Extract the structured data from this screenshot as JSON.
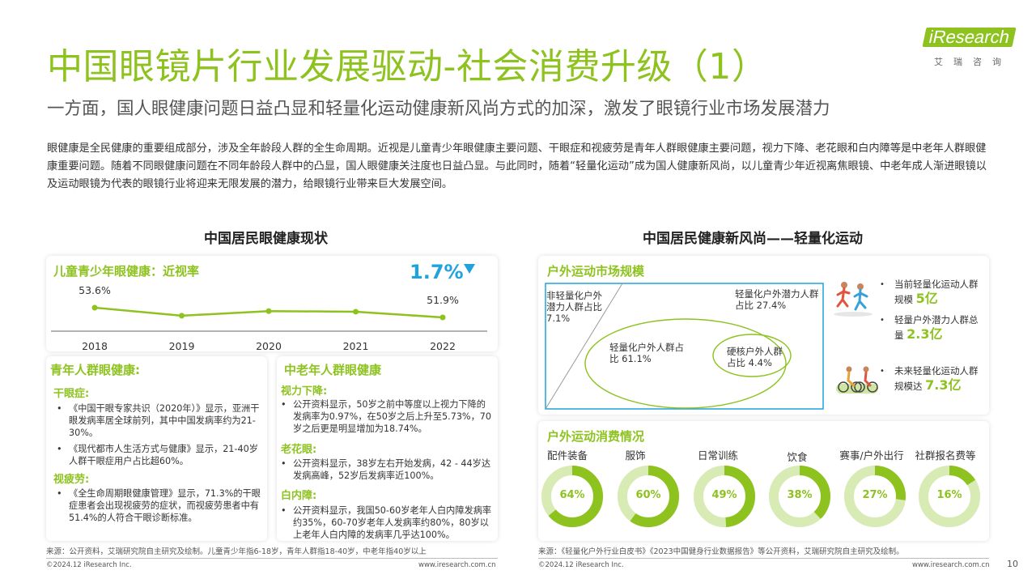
{
  "header": {
    "title": "中国眼镜片行业发展驱动-社会消费升级（1）",
    "subtitle": "一方面，国人眼健康问题日益凸显和轻量化运动健康新风尚方式的加深，激发了眼镜行业市场发展潜力",
    "intro": "眼健康是全民健康的重要组成部分，涉及全年龄段人群的全生命周期。近视是儿童青少年眼健康主要问题、干眼症和视疲劳是青年人群眼健康主要问题，视力下降、老花眼和白内障等是中老年人群眼健康重要问题。随着不同眼健康问题在不同年龄段人群中的凸显，国人眼健康关注度也日益凸显。与此同时，随着“轻量化运动”成为国人健康新风尚，以儿童青少年近视离焦眼镜、中老年成人渐进眼镜以及运动眼镜为代表的眼镜行业将迎来无限发展的潜力，给眼镜行业带来巨大发展空间。"
  },
  "logo": {
    "word": "iResearch",
    "cn": "艾瑞咨询"
  },
  "left": {
    "section_title": "中国居民眼健康现状",
    "myopia": {
      "title": "儿童青少年眼健康：近视率",
      "delta": "1.7%",
      "delta_icon": "down-triangle-icon",
      "chart_data": {
        "type": "line",
        "categories": [
          "2018",
          "2019",
          "2020",
          "2021",
          "2022"
        ],
        "series": [
          {
            "values": [
              53.6,
              52.2,
              53.0,
              52.9,
              51.9
            ]
          }
        ],
        "data_labels": [
          "53.6%",
          "",
          "",
          "",
          "51.9%"
        ]
      }
    },
    "youth": {
      "title": "青年人群眼健康:",
      "dry_eye_title": "干眼症:",
      "dry_eye_items": [
        "《中国干眼专家共识（2020年）》显示，亚洲干眼发病率居全球前列，其中中国发病率约为21-30%。",
        "《现代都市人生活方式与健康》显示，21-40岁人群干眼症用户占比超60%。"
      ],
      "fatigue_title": "视疲劳:",
      "fatigue_items": [
        "《全生命周期眼健康管理》显示，71.3%的干眼症患者会出现视疲劳的症状，而视疲劳患者中有51.4%的人符合干眼诊断标准。"
      ]
    },
    "elderly": {
      "title": "中老年人群眼健康",
      "vision_title": "视力下降:",
      "vision_items": [
        "公开资料显示，50岁之前中等度以上视力下降的发病率为0.97%，在50岁之后上升至5.73%，70岁之后更是明显增加为18.74%。"
      ],
      "presbyopia_title": "老花眼:",
      "presbyopia_items": [
        "公开资料显示，38岁左右开始发病，42 - 44岁达发病高峰，52岁后发病率近100%。"
      ],
      "cataract_title": "白内障:",
      "cataract_items": [
        "公开资料显示，我国50-60岁老年人白内障发病率约35%，60-70岁老年人发病率约80%，80岁以上老年人白内障的发病率几乎达100%。"
      ]
    },
    "source": "来源：公开资料，艾瑞研究院自主研究及绘制。儿童青少年指6-18岁，青年人群指18-40岁，中老年指40岁以上",
    "copyright": "©2024.12 iResearch Inc.",
    "website": "www.iresearch.com.cn"
  },
  "right": {
    "section_title": "中国居民健康新风尚——轻量化运动",
    "market": {
      "title": "户外运动市场规模",
      "non_light_label": "非轻量化户外潜力人群占比 7.1%",
      "potential_label": "轻量化户外潜力人群占比 27.4%",
      "light_label": "轻量化户外人群占比 61.1%",
      "hardcore_label": "硬核户外人群占比 4.4%",
      "stats": [
        {
          "icon": "runners-icon",
          "text": "当前轻量化运动人群规模",
          "value": "5亿"
        },
        {
          "icon": "",
          "text": "轻量户外潜力人群总量",
          "value": "2.3亿"
        },
        {
          "icon": "cyclists-icon",
          "text": "未来轻量化运动人群规模达",
          "value": "7.3亿"
        }
      ]
    },
    "consumption": {
      "title": "户外运动消费情况",
      "chart_data": {
        "type": "pie",
        "categories": [
          "配件装备",
          "服饰",
          "日常训练",
          "饮食",
          "赛事/户外出行",
          "社群报名费等"
        ],
        "values": [
          64,
          60,
          49,
          38,
          27,
          16
        ],
        "labels": [
          "64%",
          "60%",
          "49%",
          "38%",
          "27%",
          "16%"
        ]
      }
    },
    "source": "来源：《轻量化户外行业白皮书》《2023中国健身行业数据报告》等公开资料，艾瑞研究院自主研究及绘制。",
    "copyright": "©2024.12 iResearch Inc.",
    "website": "www.iresearch.com.cn"
  },
  "page_number": "10",
  "colors": {
    "accent": "#8dc21f",
    "accent_light": "#d8ebb4",
    "delta_blue": "#1fa3dc"
  }
}
